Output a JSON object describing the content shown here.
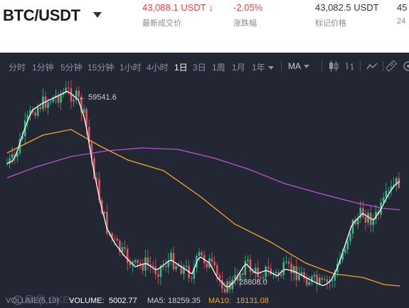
{
  "header": {
    "pair": "BTC/USDT",
    "last_price": "43,088.1 USDT",
    "last_price_label": "最新成交价",
    "change": "-2.05%",
    "change_label": "涨跌幅",
    "mark_price": "43,082.5 USDT",
    "mark_price_label": "标记价格",
    "cut_value": "45",
    "cut_label": "24"
  },
  "toolbar": {
    "intervals": [
      "分时",
      "1分钟",
      "5分钟",
      "15分钟",
      "1小时",
      "4小时",
      "1日",
      "3日",
      "1周",
      "1月",
      "1年"
    ],
    "active_interval": "1日",
    "indicator": "MA"
  },
  "chart_data": {
    "type": "candlestick",
    "high_annotation": "← 59541.6",
    "low_annotation": "← 28808.0",
    "watermark": "欧易 OKEx",
    "colors": {
      "up": "#2ebd85",
      "down": "#e35561",
      "ma5": "#ffffff",
      "ma10": "#f5a623",
      "ma30": "#c04fd8",
      "background": "#232633"
    }
  },
  "volume": {
    "label": "VOLUME(5,10)",
    "volume_label": "VOLUME:",
    "volume_value": "5002.77",
    "ma5_label": "MA5:",
    "ma5_value": "18259.35",
    "ma10_label": "MA10:",
    "ma10_value": "18131.08"
  }
}
